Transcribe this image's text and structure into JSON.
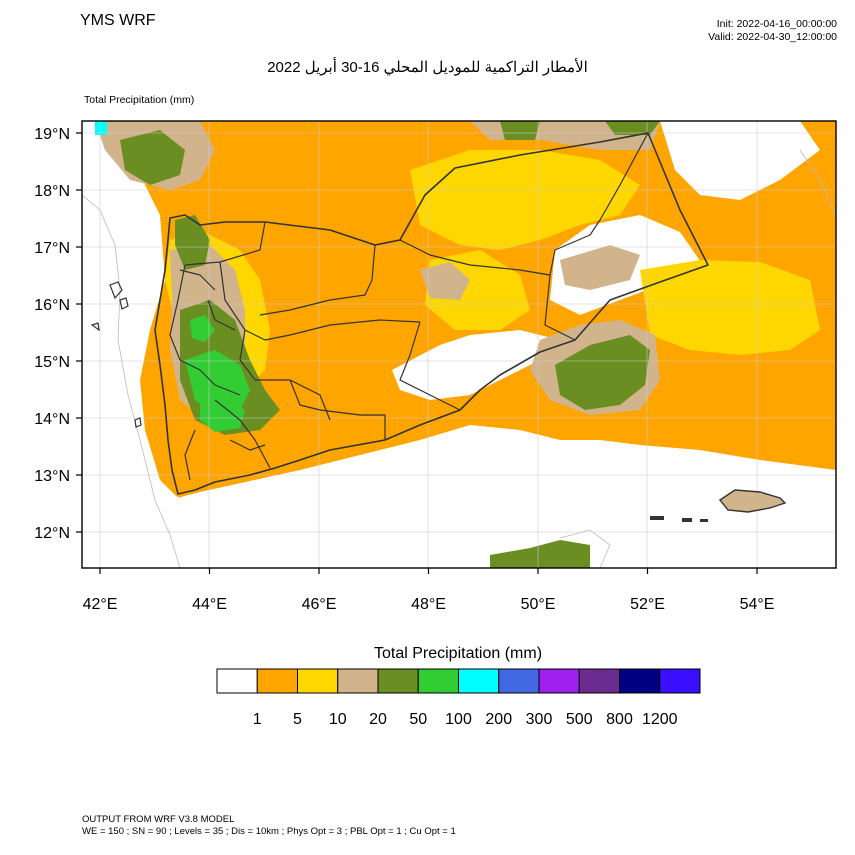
{
  "header": {
    "model_name": "YMS WRF",
    "init_time": "Init: 2022-04-16_00:00:00",
    "valid_time": "Valid: 2022-04-30_12:00:00",
    "title": "الأمطار التراكمية للموديل المحلي 16-30 أبريل 2022",
    "field_label": "Total Precipitation   (mm)"
  },
  "map": {
    "lat_labels": [
      "19°N",
      "18°N",
      "17°N",
      "16°N",
      "15°N",
      "14°N",
      "13°N",
      "12°N"
    ],
    "lon_labels": [
      "42°E",
      "44°E",
      "46°E",
      "48°E",
      "50°E",
      "52°E",
      "54°E"
    ],
    "lat_values": [
      19,
      18,
      17,
      16,
      15,
      14,
      13,
      12
    ],
    "lon_values": [
      42,
      44,
      46,
      48,
      50,
      52,
      54
    ]
  },
  "legend": {
    "title": "Total Precipitation  (mm)",
    "colors": [
      "#ffffff",
      "#ffa500",
      "#ffd700",
      "#d2b48c",
      "#6b8e23",
      "#32cd32",
      "#00ffff",
      "#4169e1",
      "#a020f0",
      "#6a2c91",
      "#000080",
      "#3a0fff"
    ],
    "labels": [
      "1",
      "5",
      "10",
      "20",
      "50",
      "100",
      "200",
      "300",
      "500",
      "800",
      "1200"
    ]
  },
  "footer": {
    "line1": "OUTPUT FROM WRF V3.8 MODEL",
    "line2": "WE = 150 ; SN = 90 ; Levels = 35 ; Dis = 10km ; Phys Opt = 3 ; PBL Opt = 1 ; Cu Opt = 1"
  }
}
